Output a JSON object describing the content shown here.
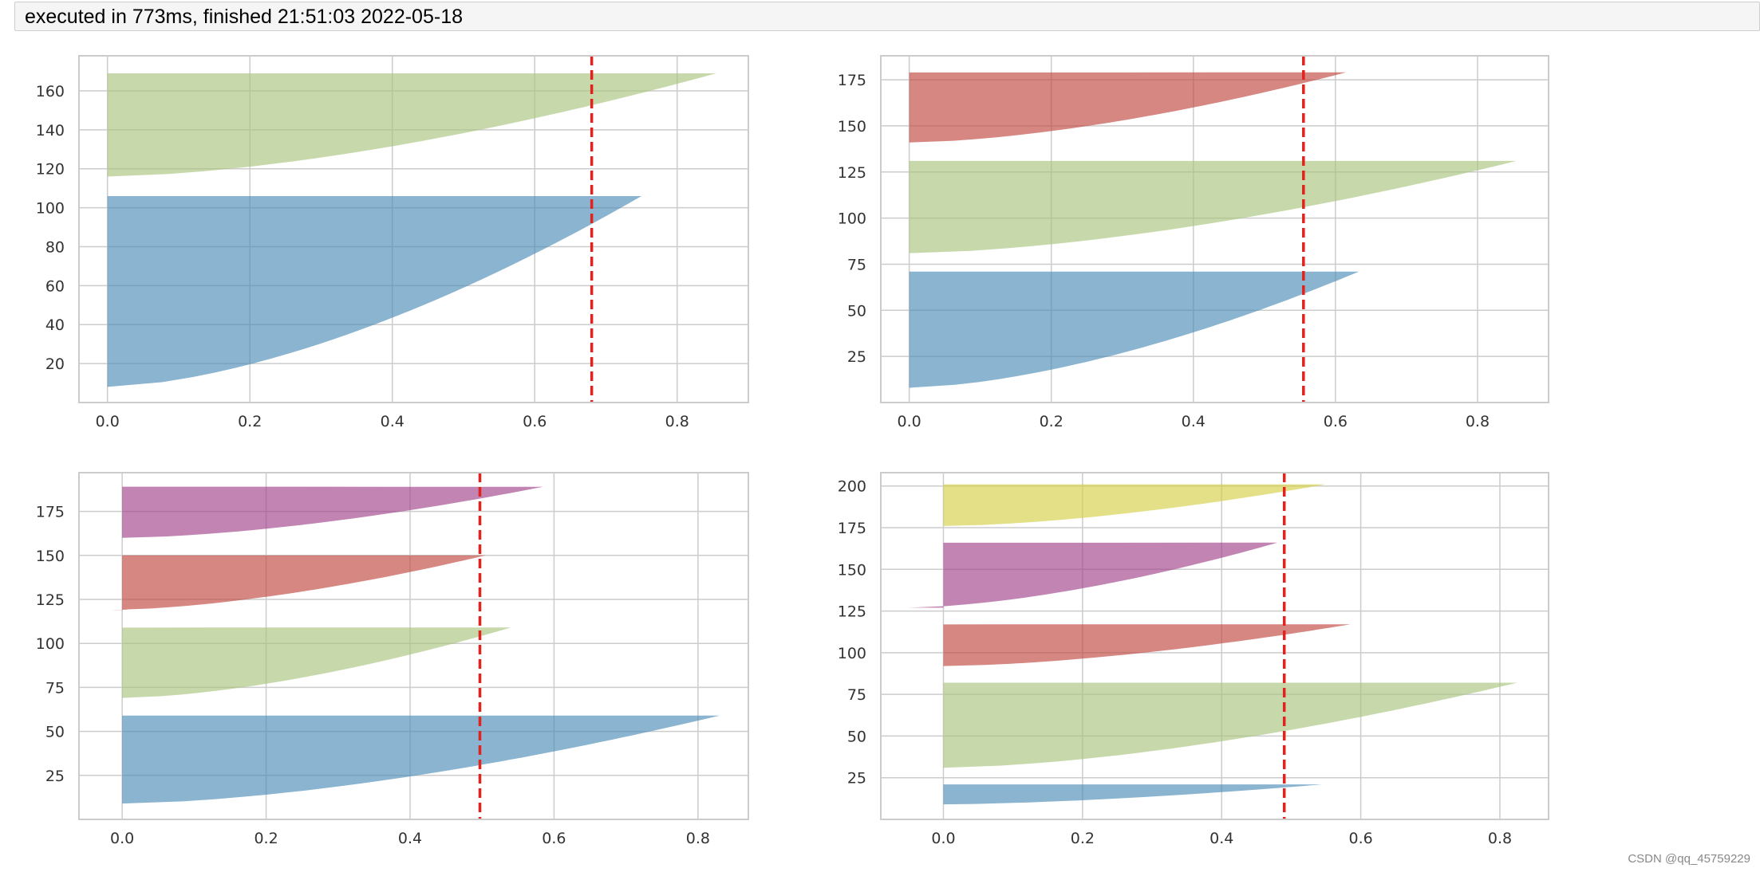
{
  "status": {
    "text": "executed in 773ms, finished 21:51:03 2022-05-18"
  },
  "watermark": "CSDN @qq_45759229",
  "colors": {
    "blue": "#4c8cb5",
    "green": "#a9c57e",
    "red": "#c0473f",
    "purple": "#a0428a",
    "yellow": "#d6cf47",
    "avg_line": "#e0231c",
    "grid": "#cccccc",
    "frame": "#cccccc"
  },
  "chart_data": [
    {
      "type": "silhouette",
      "xlim": [
        -0.04,
        0.9
      ],
      "ylim": [
        0,
        178
      ],
      "xticks": [
        0.0,
        0.2,
        0.4,
        0.6,
        0.8
      ],
      "xtick_labels": [
        "0.0",
        "0.2",
        "0.4",
        "0.6",
        "0.8"
      ],
      "yticks": [
        20,
        40,
        60,
        80,
        100,
        120,
        140,
        160
      ],
      "ytick_labels": [
        "20",
        "40",
        "60",
        "80",
        "100",
        "120",
        "140",
        "160"
      ],
      "average_score": 0.68,
      "clusters": [
        {
          "color": "blue",
          "y_lower": 8,
          "y_upper": 106,
          "min": 0.0,
          "max": 0.75
        },
        {
          "color": "green",
          "y_lower": 116,
          "y_upper": 169,
          "min": 0.0,
          "max": 0.855
        }
      ]
    },
    {
      "type": "silhouette",
      "xlim": [
        -0.04,
        0.9
      ],
      "ylim": [
        0,
        188
      ],
      "xticks": [
        0.0,
        0.2,
        0.4,
        0.6,
        0.8
      ],
      "xtick_labels": [
        "0.0",
        "0.2",
        "0.4",
        "0.6",
        "0.8"
      ],
      "yticks": [
        25,
        50,
        75,
        100,
        125,
        150,
        175
      ],
      "ytick_labels": [
        "25",
        "50",
        "75",
        "100",
        "125",
        "150",
        "175"
      ],
      "average_score": 0.555,
      "clusters": [
        {
          "color": "blue",
          "y_lower": 8,
          "y_upper": 71,
          "min": 0.0,
          "max": 0.633
        },
        {
          "color": "green",
          "y_lower": 81,
          "y_upper": 131,
          "min": 0.0,
          "max": 0.855
        },
        {
          "color": "red",
          "y_lower": 141,
          "y_upper": 179,
          "min": 0.0,
          "max": 0.615
        }
      ]
    },
    {
      "type": "silhouette",
      "xlim": [
        -0.06,
        0.87
      ],
      "ylim": [
        0,
        197
      ],
      "xticks": [
        0.0,
        0.2,
        0.4,
        0.6,
        0.8
      ],
      "xtick_labels": [
        "0.0",
        "0.2",
        "0.4",
        "0.6",
        "0.8"
      ],
      "yticks": [
        25,
        50,
        75,
        100,
        125,
        150,
        175
      ],
      "ytick_labels": [
        "25",
        "50",
        "75",
        "100",
        "125",
        "150",
        "175"
      ],
      "average_score": 0.497,
      "clusters": [
        {
          "color": "blue",
          "y_lower": 9,
          "y_upper": 59,
          "min": 0.0,
          "max": 0.83
        },
        {
          "color": "green",
          "y_lower": 69,
          "y_upper": 109,
          "min": 0.0,
          "max": 0.54
        },
        {
          "color": "red",
          "y_lower": 119,
          "y_upper": 150,
          "min": -0.015,
          "max": 0.505
        },
        {
          "color": "purple",
          "y_lower": 160,
          "y_upper": 189,
          "min": 0.0,
          "max": 0.585
        }
      ]
    },
    {
      "type": "silhouette",
      "xlim": [
        -0.09,
        0.87
      ],
      "ylim": [
        0,
        208
      ],
      "xticks": [
        0.0,
        0.2,
        0.4,
        0.6,
        0.8
      ],
      "xtick_labels": [
        "0.0",
        "0.2",
        "0.4",
        "0.6",
        "0.8"
      ],
      "yticks": [
        25,
        50,
        75,
        100,
        125,
        150,
        175,
        200
      ],
      "ytick_labels": [
        "25",
        "50",
        "75",
        "100",
        "125",
        "150",
        "175",
        "200"
      ],
      "average_score": 0.49,
      "clusters": [
        {
          "color": "blue",
          "y_lower": 9,
          "y_upper": 21,
          "min": -0.01,
          "max": 0.545
        },
        {
          "color": "green",
          "y_lower": 31,
          "y_upper": 82,
          "min": 0.0,
          "max": 0.825
        },
        {
          "color": "red",
          "y_lower": 92,
          "y_upper": 117,
          "min": 0.0,
          "max": 0.585
        },
        {
          "color": "purple",
          "y_lower": 127,
          "y_upper": 166,
          "min": -0.05,
          "max": 0.48
        },
        {
          "color": "yellow",
          "y_lower": 176,
          "y_upper": 201,
          "min": 0.0,
          "max": 0.55
        }
      ]
    }
  ]
}
